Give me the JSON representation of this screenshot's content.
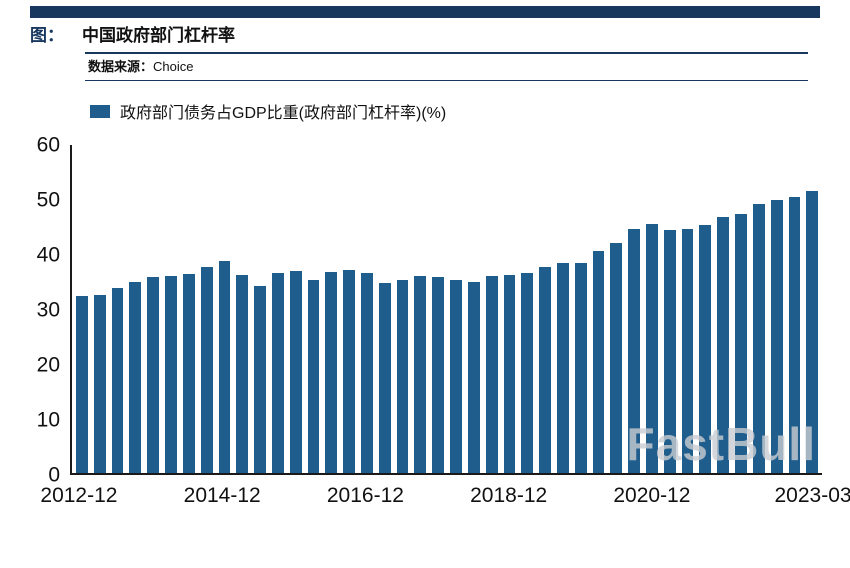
{
  "header": {
    "tag": "图：",
    "title": "中国政府部门杠杆率",
    "source_label": "数据来源：",
    "source_value": "Choice"
  },
  "legend": {
    "label": "政府部门债务占GDP比重(政府部门杠杆率)(%)"
  },
  "watermark": "FastBull",
  "colors": {
    "accent": "#17375E",
    "bar": "#1F5D8D",
    "axis": "#1A1A1A",
    "watermark": "#C9CDD1"
  },
  "chart_data": {
    "type": "bar",
    "title": "中国政府部门杠杆率",
    "legend": [
      "政府部门债务占GDP比重(政府部门杠杆率)(%)"
    ],
    "grid": false,
    "legend_position": "top-left",
    "ylim": [
      0,
      60
    ],
    "yticks": [
      0,
      10,
      20,
      30,
      40,
      50,
      60
    ],
    "x": [
      "2012-12",
      "2013-03",
      "2013-06",
      "2013-09",
      "2013-12",
      "2014-03",
      "2014-06",
      "2014-09",
      "2014-12",
      "2015-03",
      "2015-06",
      "2015-09",
      "2015-12",
      "2016-03",
      "2016-06",
      "2016-09",
      "2016-12",
      "2017-03",
      "2017-06",
      "2017-09",
      "2017-12",
      "2018-03",
      "2018-06",
      "2018-09",
      "2018-12",
      "2019-03",
      "2019-06",
      "2019-09",
      "2019-12",
      "2020-03",
      "2020-06",
      "2020-09",
      "2020-12",
      "2021-03",
      "2021-06",
      "2021-09",
      "2021-12",
      "2022-03",
      "2022-06",
      "2022-09",
      "2022-12",
      "2023-03"
    ],
    "values": [
      32.3,
      32.5,
      33.8,
      34.9,
      35.8,
      36.0,
      36.4,
      37.6,
      38.7,
      36.3,
      34.3,
      36.5,
      37.0,
      35.3,
      36.8,
      37.1,
      36.6,
      34.8,
      35.3,
      36.0,
      35.9,
      35.3,
      34.9,
      36.1,
      36.3,
      36.5,
      37.7,
      38.5,
      38.5,
      40.7,
      42.1,
      44.7,
      45.5,
      44.4,
      44.6,
      45.3,
      46.8,
      47.4,
      49.3,
      49.9,
      50.4,
      51.5
    ],
    "xticks": [
      {
        "label": "2012-12",
        "index": 0
      },
      {
        "label": "2014-12",
        "index": 8
      },
      {
        "label": "2016-12",
        "index": 16
      },
      {
        "label": "2018-12",
        "index": 24
      },
      {
        "label": "2020-12",
        "index": 32
      },
      {
        "label": "2023-03",
        "index": 41
      }
    ]
  }
}
